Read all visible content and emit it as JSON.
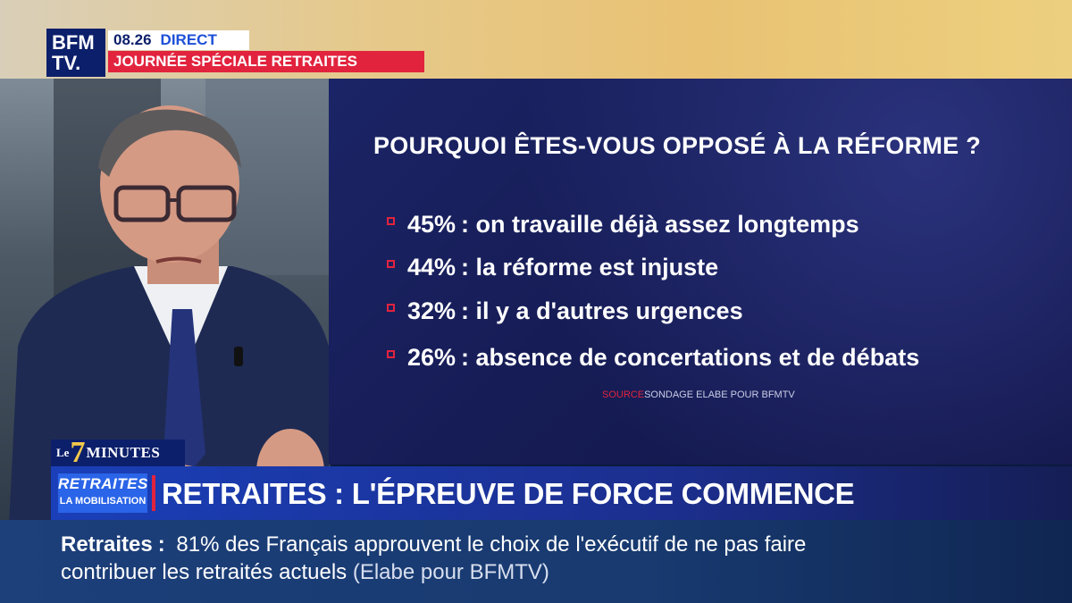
{
  "header": {
    "logo_line1": "BFM",
    "logo_line2": "TV.",
    "time": "08.26",
    "live_label": "DIRECT",
    "special_label": "JOURNÉE SPÉCIALE RETRAITES"
  },
  "graphic": {
    "title": "POURQUOI ÊTES-VOUS OPPOSÉ À LA RÉFORME ?",
    "reasons": [
      {
        "percent": "45%",
        "text": ": on travaille déjà assez longtemps"
      },
      {
        "percent": "44%",
        "text": ": la réforme est injuste"
      },
      {
        "percent": "32%",
        "text": ": il y a d'autres urgences"
      },
      {
        "percent": "26%",
        "text": ": absence de concertations et de débats"
      }
    ],
    "source_label": "SOURCE",
    "source_text": "SONDAGE ELABE POUR BFMTV"
  },
  "segment": {
    "le": "Le",
    "seven": "7",
    "minutes": "MINUTES"
  },
  "headline": {
    "logo_word": "RETRAITES",
    "logo_sub": "LA MOBILISATION",
    "text": "RETRAITES : L'ÉPREUVE DE FORCE COMMENCE"
  },
  "ticker": {
    "label": "Retraites",
    "colon": ":",
    "text": "81% des Français approuvent le choix de l'exécutif de ne pas faire contribuer les retraités actuels",
    "source": "(Elabe pour BFMTV)"
  },
  "colors": {
    "accent_red": "#e2233e",
    "brand_blue": "#0c1f6b",
    "panel_blue": "#161c55"
  }
}
